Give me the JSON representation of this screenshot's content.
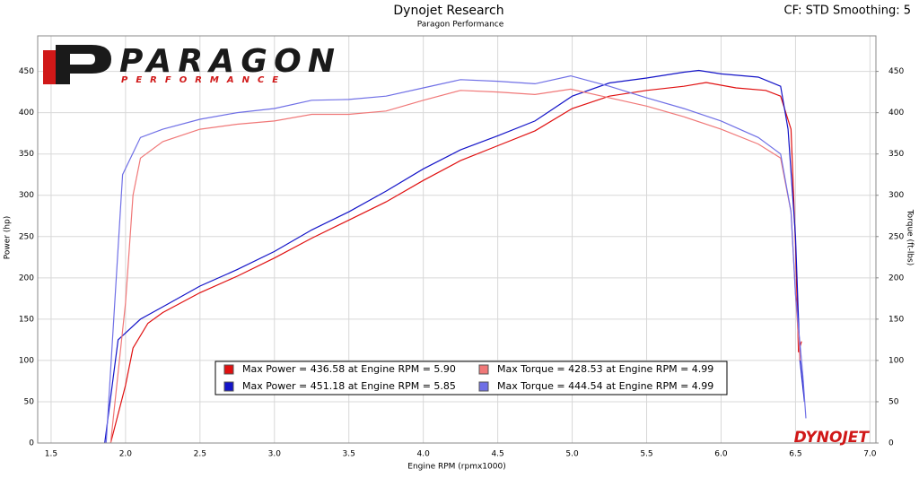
{
  "chart_data": {
    "type": "line",
    "title": "Dynojet Research",
    "subtitle": "Paragon Performance",
    "correction": "CF: STD Smoothing: 5",
    "logo": "PARAGON",
    "logo_subtitle": "PERFORMANCE",
    "brand": "DYNOJET",
    "x_label": "Engine RPM (rpmx1000)",
    "y_label": "Power (hp)",
    "y2_label": "Torque (ft-lbs)",
    "xlim": [
      1.41,
      7.04
    ],
    "ylim": [
      0,
      493
    ],
    "y2lim": [
      0,
      493
    ],
    "xticks": [
      1.5,
      {
        "value": 2,
        "label": "2.0"
      },
      2.5,
      {
        "value": 3,
        "label": "3.0"
      },
      3.5,
      {
        "value": 4,
        "label": "4.0"
      },
      4.5,
      {
        "value": 5,
        "label": "5.0"
      },
      5.5,
      {
        "value": 6,
        "label": "6.0"
      },
      6.5,
      {
        "value": 7,
        "label": "7.0"
      }
    ],
    "yticks": [
      0,
      50,
      100,
      150,
      200,
      250,
      300,
      350,
      400,
      450
    ],
    "y2ticks": [
      0,
      50,
      100,
      150,
      200,
      250,
      300,
      350,
      400,
      450
    ],
    "grid": true,
    "series": [
      {
        "name": "Max Power = 436.58 at Engine RPM = 5.90",
        "color": "#e01010",
        "x": [
          1.9,
          2.0,
          2.05,
          2.15,
          2.25,
          2.5,
          2.75,
          3.0,
          3.25,
          3.5,
          3.75,
          4.0,
          4.25,
          4.5,
          4.75,
          5.0,
          5.25,
          5.5,
          5.75,
          5.9,
          6.1,
          6.3,
          6.4,
          6.47,
          6.5,
          6.52,
          6.54
        ],
        "values": [
          0,
          70,
          115,
          145,
          158,
          182,
          202,
          224,
          248,
          270,
          292,
          318,
          342,
          360,
          378,
          405,
          420,
          427,
          432,
          436.58,
          430,
          427,
          420,
          380,
          240,
          110,
          123
        ]
      },
      {
        "name": "Max Power = 451.18 at Engine RPM = 5.85",
        "color": "#1414c8",
        "x": [
          1.86,
          1.95,
          2.1,
          2.25,
          2.5,
          2.75,
          3.0,
          3.25,
          3.5,
          3.75,
          4.0,
          4.25,
          4.5,
          4.75,
          5.0,
          5.25,
          5.5,
          5.75,
          5.85,
          6.0,
          6.25,
          6.4,
          6.45,
          6.5,
          6.53,
          6.56
        ],
        "values": [
          0,
          125,
          150,
          165,
          190,
          210,
          232,
          258,
          280,
          305,
          332,
          355,
          372,
          390,
          420,
          436,
          442,
          449,
          451.18,
          447,
          443,
          432,
          380,
          250,
          100,
          50
        ]
      },
      {
        "name": "Max Torque = 428.53 at Engine RPM = 4.99",
        "color": "#f07878",
        "axis": "y2",
        "x": [
          1.9,
          2.0,
          2.05,
          2.1,
          2.25,
          2.5,
          2.75,
          3.0,
          3.25,
          3.5,
          3.75,
          4.0,
          4.25,
          4.5,
          4.75,
          4.99,
          5.25,
          5.5,
          5.75,
          6.0,
          6.25,
          6.4,
          6.47,
          6.5,
          6.53
        ],
        "values": [
          0,
          170,
          300,
          345,
          365,
          380,
          386,
          390,
          398,
          398,
          402,
          415,
          427,
          425,
          422,
          428.53,
          418,
          408,
          395,
          380,
          362,
          345,
          280,
          180,
          100
        ]
      },
      {
        "name": "Max Torque = 444.54 at Engine RPM = 4.99",
        "color": "#7070e6",
        "axis": "y2",
        "x": [
          1.87,
          1.98,
          2.1,
          2.25,
          2.5,
          2.75,
          3.0,
          3.25,
          3.5,
          3.75,
          4.0,
          4.25,
          4.5,
          4.75,
          4.99,
          5.25,
          5.5,
          5.75,
          6.0,
          6.25,
          6.4,
          6.47,
          6.5,
          6.55,
          6.57
        ],
        "values": [
          0,
          325,
          370,
          380,
          392,
          400,
          405,
          415,
          416,
          420,
          430,
          440,
          438,
          435,
          444.54,
          432,
          418,
          405,
          390,
          370,
          350,
          280,
          180,
          80,
          30
        ]
      }
    ]
  }
}
